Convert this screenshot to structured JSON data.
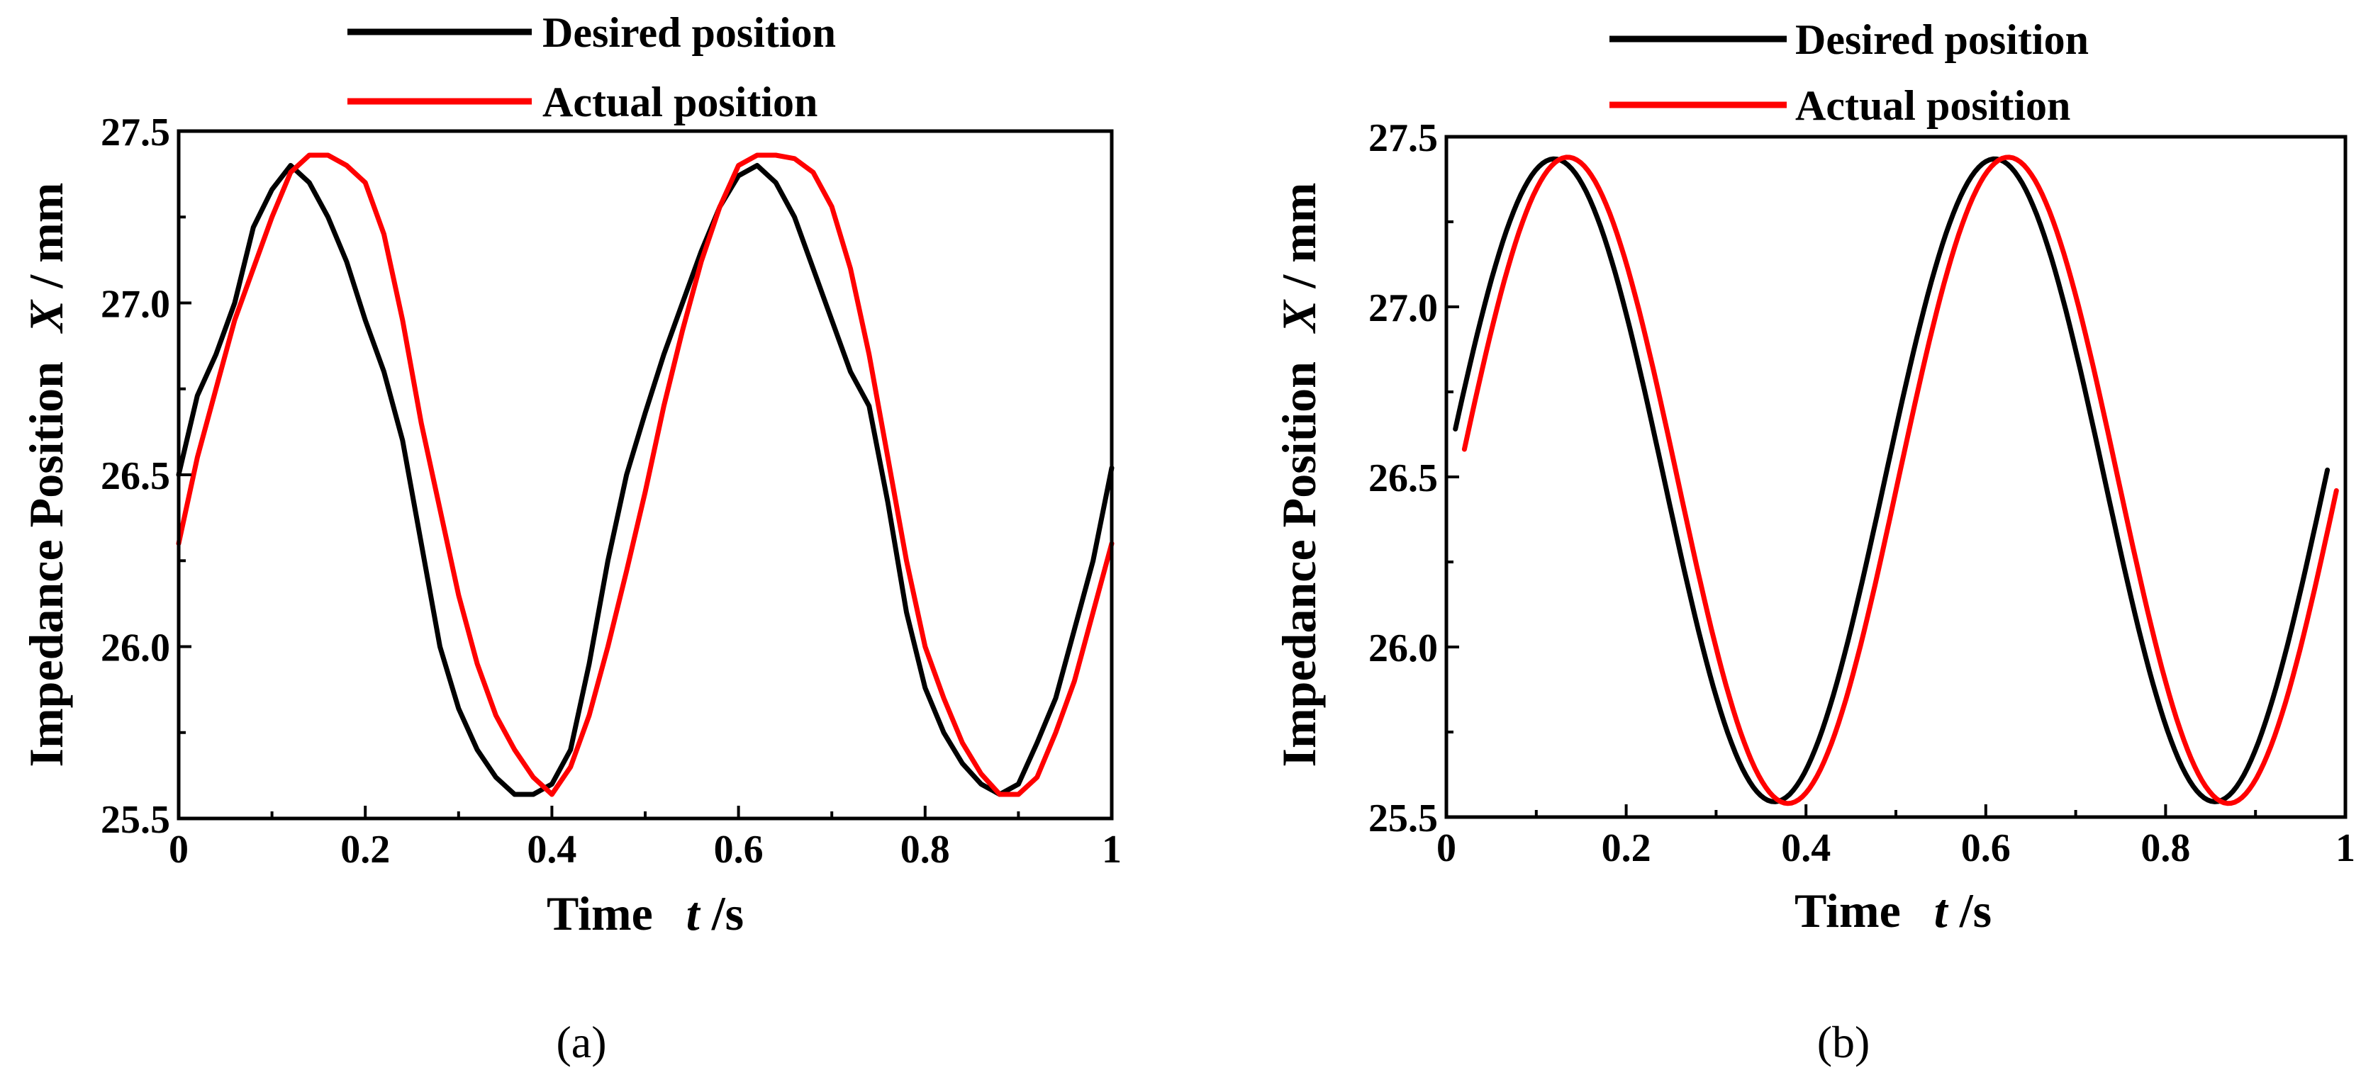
{
  "chart_data": [
    {
      "type": "line",
      "caption": "(a)",
      "xlabel": {
        "main": "Time",
        "var": "t",
        "unit": "/s"
      },
      "ylabel": {
        "main": "Impedance Position",
        "var": "X",
        "unit": "/ mm"
      },
      "xlim": [
        0,
        1
      ],
      "ylim": [
        25.5,
        27.5
      ],
      "xticks": [
        0,
        0.2,
        0.4,
        0.6,
        0.8,
        1
      ],
      "xtick_labels": [
        "0",
        "0.2",
        "0.4",
        "0.6",
        "0.8",
        "1"
      ],
      "yticks": [
        25.5,
        26.0,
        26.5,
        27.0,
        27.5
      ],
      "ytick_labels": [
        "25.5",
        "26.0",
        "26.5",
        "27.0",
        "27.5"
      ],
      "grid": false,
      "legend_position": "top",
      "series": [
        {
          "name": "Desired position",
          "color": "#000000",
          "x": [
            0,
            0.02,
            0.04,
            0.06,
            0.08,
            0.1,
            0.12,
            0.14,
            0.16,
            0.18,
            0.2,
            0.22,
            0.24,
            0.26,
            0.28,
            0.3,
            0.32,
            0.34,
            0.36,
            0.38,
            0.4,
            0.42,
            0.44,
            0.46,
            0.48,
            0.5,
            0.52,
            0.54,
            0.56,
            0.58,
            0.6,
            0.62,
            0.64,
            0.66,
            0.68,
            0.7,
            0.72,
            0.74,
            0.76,
            0.78,
            0.8,
            0.82,
            0.84,
            0.86,
            0.88,
            0.9,
            0.92,
            0.94,
            0.96,
            0.98,
            1.0
          ],
          "values": [
            26.5,
            26.73,
            26.85,
            27.0,
            27.22,
            27.33,
            27.4,
            27.35,
            27.25,
            27.12,
            26.95,
            26.8,
            26.6,
            26.3,
            26.0,
            25.82,
            25.7,
            25.62,
            25.57,
            25.57,
            25.6,
            25.7,
            25.95,
            26.25,
            26.5,
            26.68,
            26.85,
            27.0,
            27.15,
            27.28,
            27.37,
            27.4,
            27.35,
            27.25,
            27.1,
            26.95,
            26.8,
            26.7,
            26.42,
            26.1,
            25.88,
            25.75,
            25.66,
            25.6,
            25.57,
            25.6,
            25.72,
            25.85,
            26.05,
            26.25,
            26.52
          ]
        },
        {
          "name": "Actual position",
          "color": "#ff0000",
          "x": [
            0,
            0.02,
            0.04,
            0.06,
            0.08,
            0.1,
            0.12,
            0.14,
            0.16,
            0.18,
            0.2,
            0.22,
            0.24,
            0.26,
            0.28,
            0.3,
            0.32,
            0.34,
            0.36,
            0.38,
            0.4,
            0.42,
            0.44,
            0.46,
            0.48,
            0.5,
            0.52,
            0.54,
            0.56,
            0.58,
            0.6,
            0.62,
            0.64,
            0.66,
            0.68,
            0.7,
            0.72,
            0.74,
            0.76,
            0.78,
            0.8,
            0.82,
            0.84,
            0.86,
            0.88,
            0.9,
            0.92,
            0.94,
            0.96,
            0.98,
            1.0
          ],
          "values": [
            26.3,
            26.55,
            26.75,
            26.95,
            27.1,
            27.25,
            27.38,
            27.43,
            27.43,
            27.4,
            27.35,
            27.2,
            26.95,
            26.65,
            26.4,
            26.15,
            25.95,
            25.8,
            25.7,
            25.62,
            25.57,
            25.65,
            25.8,
            26.0,
            26.22,
            26.45,
            26.7,
            26.92,
            27.12,
            27.28,
            27.4,
            27.43,
            27.43,
            27.42,
            27.38,
            27.28,
            27.1,
            26.85,
            26.55,
            26.25,
            26.0,
            25.85,
            25.72,
            25.63,
            25.57,
            25.57,
            25.62,
            25.75,
            25.9,
            26.1,
            26.3
          ]
        }
      ]
    },
    {
      "type": "line",
      "caption": "(b)",
      "xlabel": {
        "main": "Time",
        "var": "t",
        "unit": "/s"
      },
      "ylabel": {
        "main": "Impedance Position",
        "var": "X",
        "unit": "/ mm"
      },
      "xlim": [
        0,
        1
      ],
      "ylim": [
        25.5,
        27.5
      ],
      "xticks": [
        0,
        0.2,
        0.4,
        0.6,
        0.8,
        1
      ],
      "xtick_labels": [
        "0",
        "0.2",
        "0.4",
        "0.6",
        "0.8",
        "1"
      ],
      "yticks": [
        25.5,
        26.0,
        26.5,
        27.0,
        27.5
      ],
      "ytick_labels": [
        "25.5",
        "26.0",
        "26.5",
        "27.0",
        "27.5"
      ],
      "grid": false,
      "legend_position": "top",
      "series": [
        {
          "name": "Desired position",
          "color": "#000000",
          "function": "sine",
          "x_range": [
            0.01,
            0.98
          ],
          "mean": 26.49,
          "amplitude": 0.945,
          "period": 0.49,
          "peak_at": 0.12
        },
        {
          "name": "Actual position",
          "color": "#ff0000",
          "function": "sine",
          "x_range": [
            0.02,
            0.99
          ],
          "mean": 26.49,
          "amplitude": 0.95,
          "period": 0.49,
          "peak_at": 0.135
        }
      ]
    }
  ]
}
